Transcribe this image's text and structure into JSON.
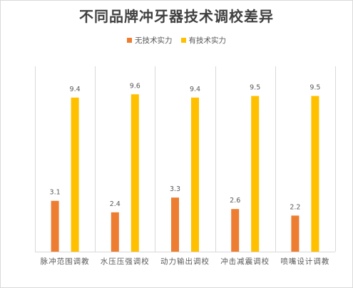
{
  "chart_data": {
    "type": "bar",
    "title": "不同品牌冲牙器技术调校差异",
    "categories": [
      "脉冲范围调教",
      "水压压强调校",
      "动力输出调校",
      "冲击减震调校",
      "喷嘴设计调教"
    ],
    "series": [
      {
        "name": "无技术实力",
        "color": "#ED7D31",
        "values": [
          3.1,
          2.4,
          3.3,
          2.6,
          2.2
        ]
      },
      {
        "name": "有技术实力",
        "color": "#FFC000",
        "values": [
          9.4,
          9.6,
          9.4,
          9.5,
          9.5
        ]
      }
    ],
    "ylim": [
      0,
      10.8
    ],
    "grid": false,
    "legend_position": "top",
    "data_labels": true,
    "category_separators": true
  }
}
